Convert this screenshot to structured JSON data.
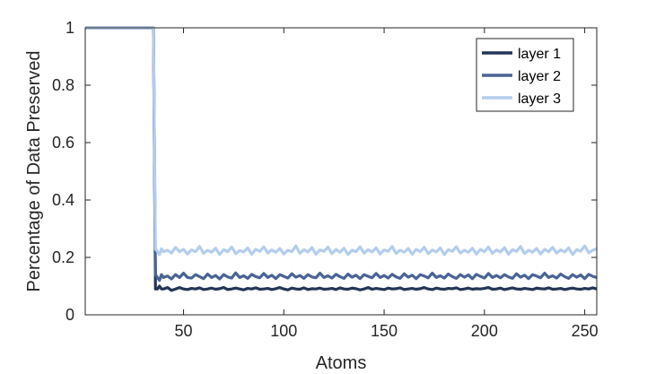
{
  "chart_data": {
    "type": "line",
    "title": "",
    "xlabel": "Atoms",
    "ylabel": "Percentage of Data Preserved",
    "xlim": [
      1,
      256
    ],
    "ylim": [
      0,
      1
    ],
    "xticks": [
      50,
      100,
      150,
      200,
      250
    ],
    "yticks": [
      0,
      0.2,
      0.4,
      0.6,
      0.8,
      1
    ],
    "xtick_labels": [
      "50",
      "100",
      "150",
      "200",
      "250"
    ],
    "ytick_labels": [
      "0",
      "0.2",
      "0.4",
      "0.6",
      "0.8",
      "1"
    ],
    "grid": false,
    "legend": {
      "position": "top-right",
      "entries": [
        "layer 1",
        "layer 2",
        "layer 3"
      ]
    },
    "series": [
      {
        "name": "layer 1",
        "color": "#233656",
        "x": [
          1,
          35,
          36,
          37,
          38,
          39,
          40,
          42,
          44,
          46,
          48,
          50,
          52,
          54,
          56,
          58,
          60,
          62,
          64,
          66,
          68,
          70,
          72,
          74,
          76,
          78,
          80,
          82,
          84,
          86,
          88,
          90,
          92,
          94,
          96,
          98,
          100,
          102,
          104,
          106,
          108,
          110,
          112,
          114,
          116,
          118,
          120,
          122,
          124,
          126,
          128,
          130,
          132,
          134,
          136,
          138,
          140,
          142,
          144,
          146,
          148,
          150,
          152,
          154,
          156,
          158,
          160,
          162,
          164,
          166,
          168,
          170,
          172,
          174,
          176,
          178,
          180,
          182,
          184,
          186,
          188,
          190,
          192,
          194,
          196,
          198,
          200,
          202,
          204,
          206,
          208,
          210,
          212,
          214,
          216,
          218,
          220,
          222,
          224,
          226,
          228,
          230,
          232,
          234,
          236,
          238,
          240,
          242,
          244,
          246,
          248,
          250,
          252,
          254,
          256
        ],
        "values": [
          1,
          1,
          0.09,
          0.09,
          0.1,
          0.09,
          0.09,
          0.095,
          0.085,
          0.09,
          0.095,
          0.09,
          0.088,
          0.092,
          0.09,
          0.094,
          0.088,
          0.09,
          0.093,
          0.089,
          0.091,
          0.095,
          0.088,
          0.09,
          0.093,
          0.09,
          0.087,
          0.092,
          0.09,
          0.094,
          0.089,
          0.09,
          0.092,
          0.088,
          0.091,
          0.095,
          0.09,
          0.087,
          0.093,
          0.09,
          0.089,
          0.094,
          0.088,
          0.091,
          0.09,
          0.093,
          0.089,
          0.09,
          0.092,
          0.088,
          0.094,
          0.09,
          0.089,
          0.093,
          0.091,
          0.087,
          0.09,
          0.095,
          0.089,
          0.092,
          0.09,
          0.088,
          0.093,
          0.09,
          0.091,
          0.094,
          0.088,
          0.09,
          0.092,
          0.089,
          0.091,
          0.095,
          0.09,
          0.088,
          0.093,
          0.09,
          0.089,
          0.092,
          0.091,
          0.094,
          0.088,
          0.09,
          0.093,
          0.089,
          0.091,
          0.09,
          0.092,
          0.095,
          0.089,
          0.09,
          0.093,
          0.088,
          0.091,
          0.094,
          0.09,
          0.089,
          0.092,
          0.09,
          0.088,
          0.093,
          0.091,
          0.09,
          0.094,
          0.089,
          0.09,
          0.092,
          0.088,
          0.091,
          0.093,
          0.09,
          0.089,
          0.092,
          0.09,
          0.094,
          0.09
        ]
      },
      {
        "name": "layer 2",
        "color": "#4a6394",
        "x": [
          1,
          35,
          36,
          37,
          38,
          39,
          40,
          42,
          44,
          46,
          48,
          50,
          52,
          54,
          56,
          58,
          60,
          62,
          64,
          66,
          68,
          70,
          72,
          74,
          76,
          78,
          80,
          82,
          84,
          86,
          88,
          90,
          92,
          94,
          96,
          98,
          100,
          102,
          104,
          106,
          108,
          110,
          112,
          114,
          116,
          118,
          120,
          122,
          124,
          126,
          128,
          130,
          132,
          134,
          136,
          138,
          140,
          142,
          144,
          146,
          148,
          150,
          152,
          154,
          156,
          158,
          160,
          162,
          164,
          166,
          168,
          170,
          172,
          174,
          176,
          178,
          180,
          182,
          184,
          186,
          188,
          190,
          192,
          194,
          196,
          198,
          200,
          202,
          204,
          206,
          208,
          210,
          212,
          214,
          216,
          218,
          220,
          222,
          224,
          226,
          228,
          230,
          232,
          234,
          236,
          238,
          240,
          242,
          244,
          246,
          248,
          250,
          252,
          254,
          256
        ],
        "values": [
          1,
          1,
          0.14,
          0.13,
          0.12,
          0.14,
          0.13,
          0.135,
          0.125,
          0.14,
          0.13,
          0.145,
          0.13,
          0.128,
          0.14,
          0.133,
          0.126,
          0.142,
          0.13,
          0.137,
          0.125,
          0.14,
          0.132,
          0.128,
          0.146,
          0.13,
          0.136,
          0.127,
          0.141,
          0.133,
          0.129,
          0.144,
          0.13,
          0.138,
          0.126,
          0.14,
          0.134,
          0.128,
          0.143,
          0.131,
          0.137,
          0.127,
          0.14,
          0.132,
          0.129,
          0.145,
          0.13,
          0.136,
          0.128,
          0.141,
          0.133,
          0.127,
          0.142,
          0.131,
          0.138,
          0.126,
          0.14,
          0.134,
          0.129,
          0.144,
          0.13,
          0.137,
          0.128,
          0.141,
          0.132,
          0.127,
          0.143,
          0.131,
          0.138,
          0.126,
          0.14,
          0.135,
          0.129,
          0.145,
          0.13,
          0.136,
          0.128,
          0.142,
          0.133,
          0.127,
          0.14,
          0.131,
          0.139,
          0.126,
          0.141,
          0.134,
          0.128,
          0.144,
          0.13,
          0.137,
          0.129,
          0.14,
          0.132,
          0.127,
          0.143,
          0.131,
          0.138,
          0.126,
          0.14,
          0.135,
          0.129,
          0.145,
          0.13,
          0.136,
          0.128,
          0.142,
          0.133,
          0.127,
          0.14,
          0.131,
          0.139,
          0.126,
          0.141,
          0.134,
          0.13
        ]
      },
      {
        "name": "layer 3",
        "color": "#b4cdeb",
        "x": [
          1,
          35,
          36,
          37,
          38,
          39,
          40,
          42,
          44,
          46,
          48,
          50,
          52,
          54,
          56,
          58,
          60,
          62,
          64,
          66,
          68,
          70,
          72,
          74,
          76,
          78,
          80,
          82,
          84,
          86,
          88,
          90,
          92,
          94,
          96,
          98,
          100,
          102,
          104,
          106,
          108,
          110,
          112,
          114,
          116,
          118,
          120,
          122,
          124,
          126,
          128,
          130,
          132,
          134,
          136,
          138,
          140,
          142,
          144,
          146,
          148,
          150,
          152,
          154,
          156,
          158,
          160,
          162,
          164,
          166,
          168,
          170,
          172,
          174,
          176,
          178,
          180,
          182,
          184,
          186,
          188,
          190,
          192,
          194,
          196,
          198,
          200,
          202,
          204,
          206,
          208,
          210,
          212,
          214,
          216,
          218,
          220,
          222,
          224,
          226,
          228,
          230,
          232,
          234,
          236,
          238,
          240,
          242,
          244,
          246,
          248,
          250,
          252,
          254,
          256
        ],
        "values": [
          1,
          1,
          0.23,
          0.22,
          0.21,
          0.23,
          0.22,
          0.225,
          0.215,
          0.235,
          0.22,
          0.228,
          0.212,
          0.226,
          0.22,
          0.238,
          0.214,
          0.225,
          0.218,
          0.232,
          0.21,
          0.227,
          0.22,
          0.236,
          0.213,
          0.224,
          0.219,
          0.233,
          0.211,
          0.228,
          0.221,
          0.237,
          0.215,
          0.226,
          0.218,
          0.231,
          0.212,
          0.225,
          0.22,
          0.24,
          0.214,
          0.227,
          0.219,
          0.234,
          0.211,
          0.226,
          0.221,
          0.236,
          0.213,
          0.228,
          0.218,
          0.232,
          0.21,
          0.225,
          0.22,
          0.237,
          0.215,
          0.227,
          0.219,
          0.233,
          0.212,
          0.226,
          0.221,
          0.238,
          0.214,
          0.225,
          0.218,
          0.231,
          0.211,
          0.228,
          0.22,
          0.235,
          0.213,
          0.226,
          0.219,
          0.233,
          0.21,
          0.227,
          0.221,
          0.237,
          0.215,
          0.225,
          0.218,
          0.232,
          0.212,
          0.228,
          0.22,
          0.236,
          0.214,
          0.226,
          0.219,
          0.234,
          0.211,
          0.227,
          0.221,
          0.238,
          0.213,
          0.225,
          0.218,
          0.231,
          0.212,
          0.228,
          0.22,
          0.235,
          0.215,
          0.226,
          0.219,
          0.233,
          0.21,
          0.227,
          0.222,
          0.24,
          0.216,
          0.225,
          0.23
        ]
      }
    ]
  }
}
